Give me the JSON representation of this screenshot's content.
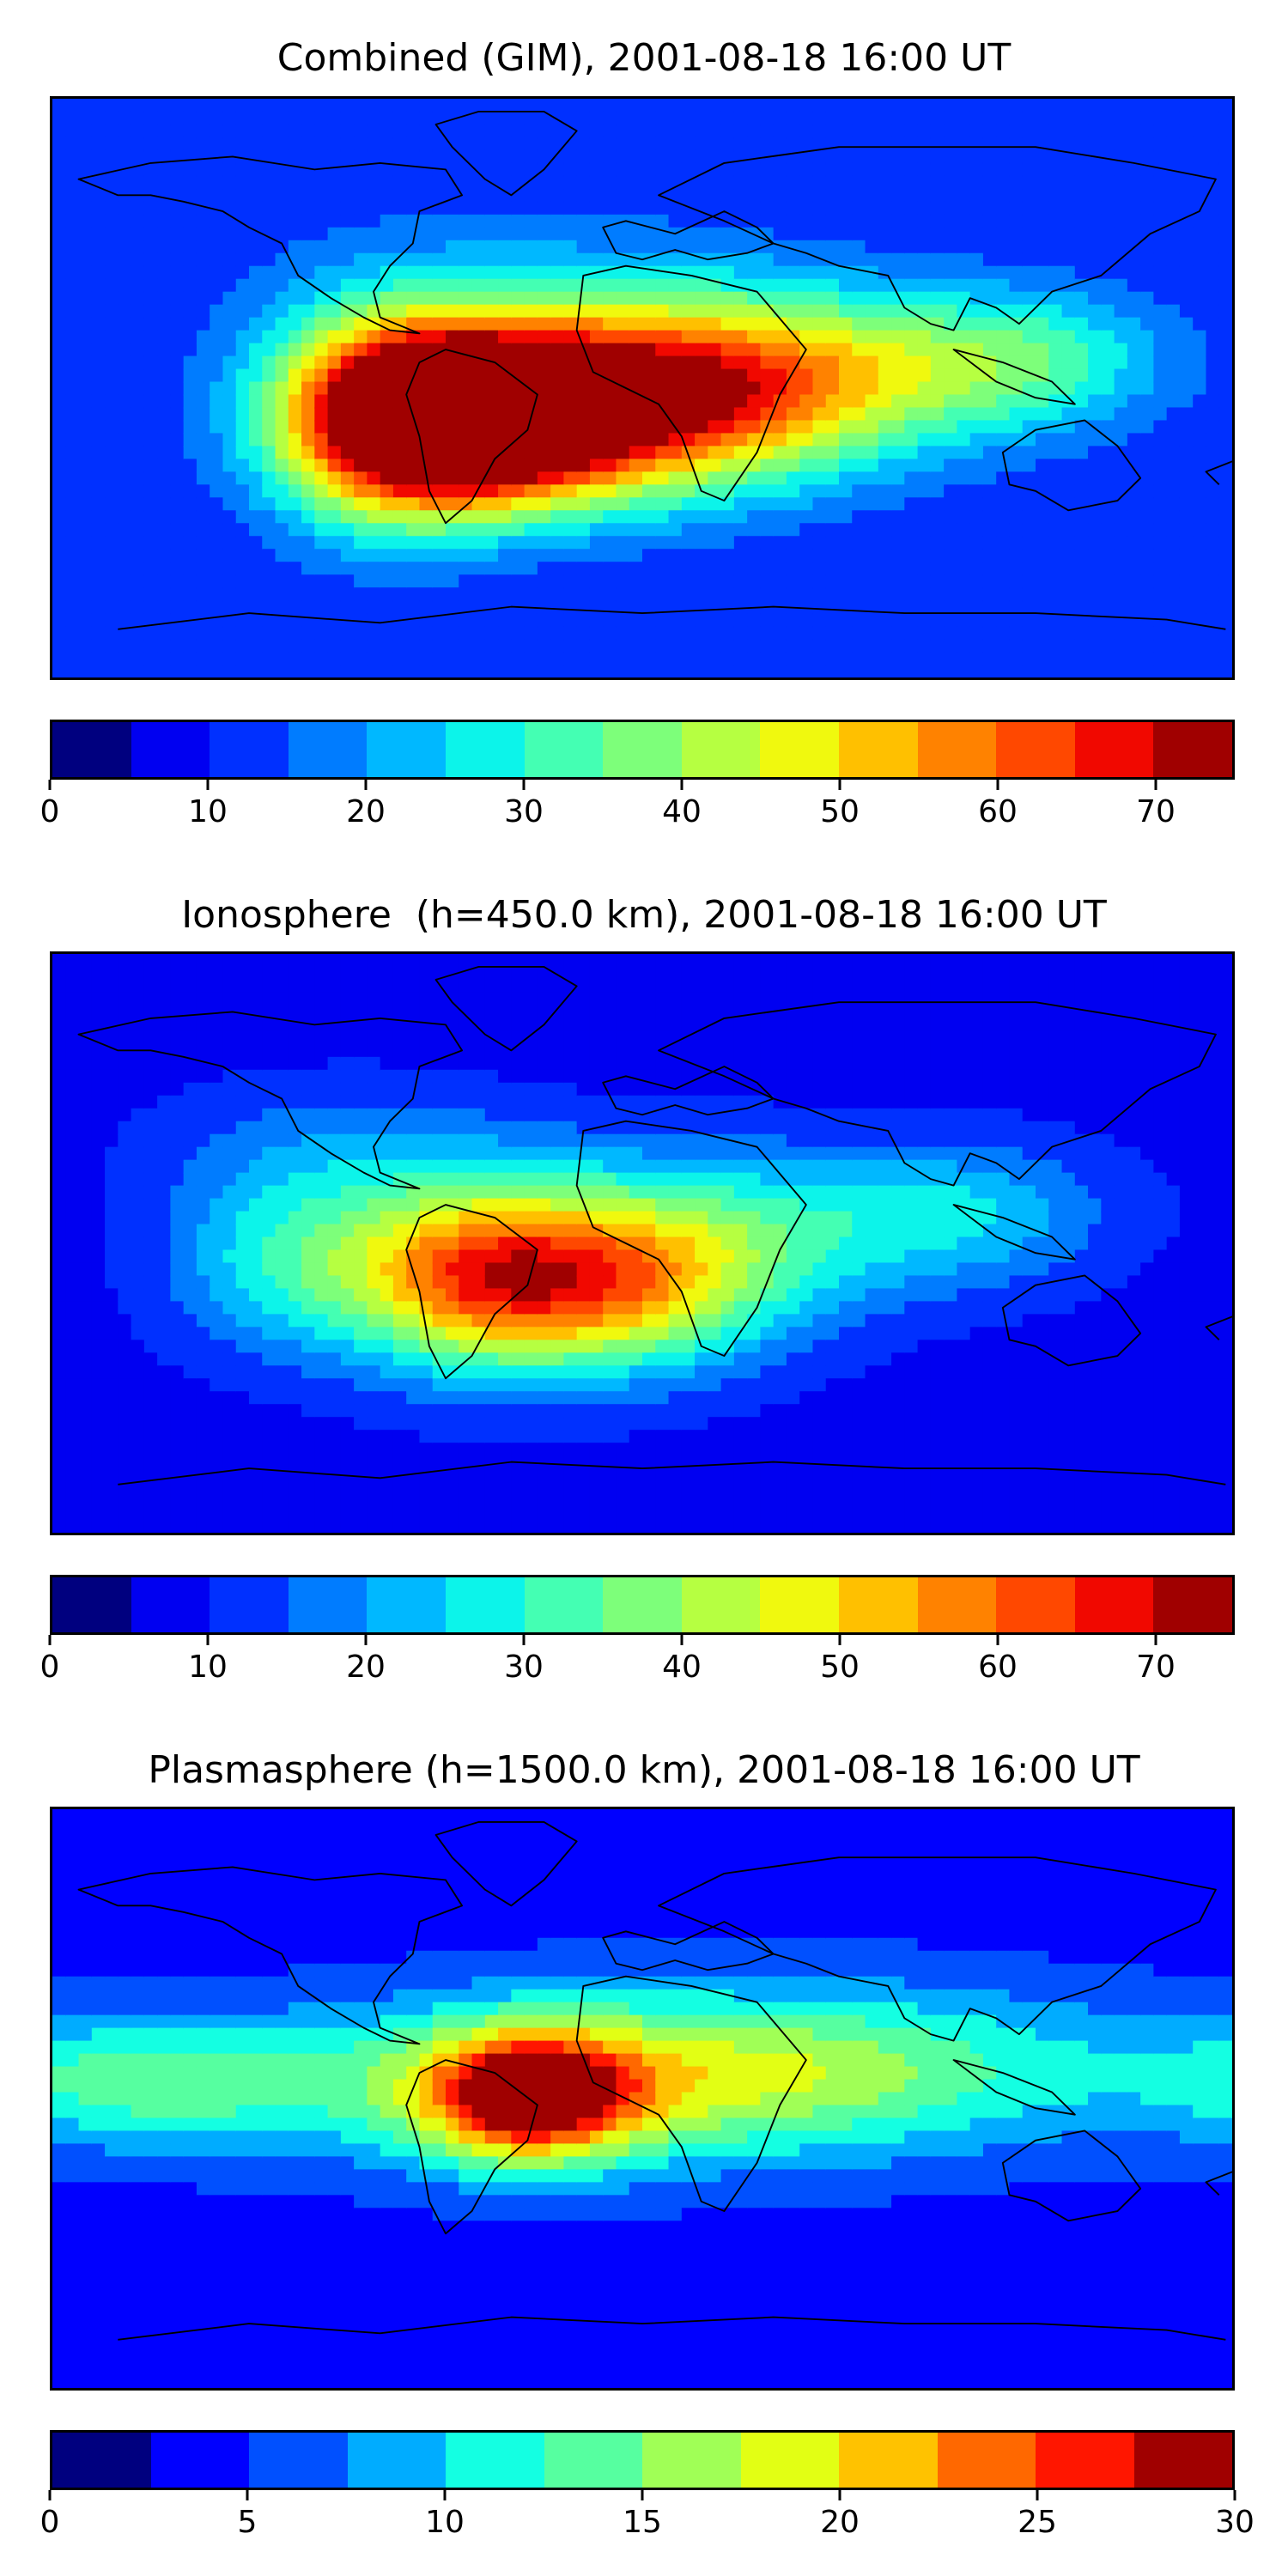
{
  "palette_20": [
    "#00007f",
    "#0000f1",
    "#0030ff",
    "#007cff",
    "#00b8ff",
    "#0cf4ea",
    "#44ffb3",
    "#7dff7a",
    "#b6ff41",
    "#f0f90e",
    "#ffc000",
    "#ff8200",
    "#ff4800",
    "#f10800",
    "#a00000"
  ],
  "palette_30": [
    "#00007f",
    "#0000ff",
    "#0050ff",
    "#00acff",
    "#14ffe2",
    "#56ffa0",
    "#a0ff56",
    "#e2ff14",
    "#ffc200",
    "#ff6800",
    "#ff1600",
    "#a00000"
  ],
  "panels": [
    {
      "id": "combined",
      "title": "Combined (GIM), 2001-08-18 16:00 UT",
      "colorbar": {
        "min": 0,
        "max": 75,
        "levels": 15,
        "ticks": [
          "0",
          "10",
          "20",
          "30",
          "40",
          "50",
          "60",
          "70"
        ],
        "tick_values": [
          0,
          10,
          20,
          30,
          40,
          50,
          60,
          70
        ]
      },
      "field": {
        "background": 10,
        "blobs": [
          {
            "lon": -55,
            "lat": -10,
            "sx": 30,
            "sy": 18,
            "amp": 60
          },
          {
            "lon": -15,
            "lat": -8,
            "sx": 50,
            "sy": 20,
            "amp": 48
          },
          {
            "lon": 40,
            "lat": 5,
            "sx": 55,
            "sy": 18,
            "amp": 32
          },
          {
            "lon": -80,
            "lat": -10,
            "sx": 25,
            "sy": 25,
            "amp": 30
          },
          {
            "lon": 120,
            "lat": 10,
            "sx": 30,
            "sy": 15,
            "amp": 15
          },
          {
            "lon": -30,
            "lat": 30,
            "sx": 60,
            "sy": 20,
            "amp": 8
          }
        ]
      }
    },
    {
      "id": "ionosphere",
      "title": "Ionosphere  (h=450.0 km), 2001-08-18 16:00 UT",
      "colorbar": {
        "min": 0,
        "max": 75,
        "levels": 15,
        "ticks": [
          "0",
          "10",
          "20",
          "30",
          "40",
          "50",
          "60",
          "70"
        ],
        "tick_values": [
          0,
          10,
          20,
          30,
          40,
          50,
          60,
          70
        ]
      },
      "field": {
        "background": 8,
        "blobs": [
          {
            "lon": -55,
            "lat": -10,
            "sx": 28,
            "sy": 20,
            "amp": 36
          },
          {
            "lon": -10,
            "lat": -15,
            "sx": 35,
            "sy": 18,
            "amp": 38
          },
          {
            "lon": 20,
            "lat": 5,
            "sx": 55,
            "sy": 18,
            "amp": 20
          },
          {
            "lon": -110,
            "lat": -5,
            "sx": 25,
            "sy": 20,
            "amp": 18
          },
          {
            "lon": 100,
            "lat": 10,
            "sx": 30,
            "sy": 15,
            "amp": 12
          },
          {
            "lon": -90,
            "lat": 30,
            "sx": 40,
            "sy": 15,
            "amp": 8
          }
        ]
      }
    },
    {
      "id": "plasmasphere",
      "title": "Plasmasphere (h=1500.0 km), 2001-08-18 16:00 UT",
      "colorbar": {
        "min": 0,
        "max": 30,
        "levels": 12,
        "ticks": [
          "0",
          "5",
          "10",
          "15",
          "20",
          "25",
          "30"
        ],
        "tick_values": [
          0,
          5,
          10,
          15,
          20,
          25,
          30
        ]
      },
      "field": {
        "background": 4,
        "blobs": [
          {
            "lon": -35,
            "lat": 0,
            "sx": 22,
            "sy": 14,
            "amp": 20
          },
          {
            "lon": -20,
            "lat": 5,
            "sx": 70,
            "sy": 18,
            "amp": 10
          },
          {
            "lon": 60,
            "lat": 10,
            "sx": 70,
            "sy": 18,
            "amp": 8
          },
          {
            "lon": -150,
            "lat": 5,
            "sx": 40,
            "sy": 14,
            "amp": 8
          }
        ]
      }
    }
  ]
}
